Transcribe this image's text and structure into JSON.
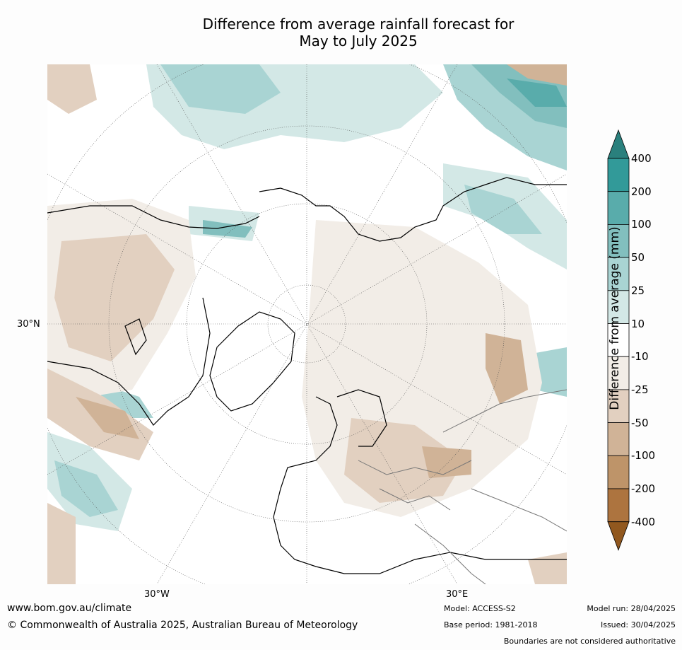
{
  "title_line1": "Difference from average rainfall forecast for",
  "title_line2": "May to July 2025",
  "lat_label": "30°N",
  "lon_labels": [
    "30°W",
    "30°E"
  ],
  "legend": {
    "label": "Difference from average (mm)",
    "ticks": [
      "400",
      "200",
      "100",
      "50",
      "25",
      "10",
      "-10",
      "-25",
      "-50",
      "-100",
      "-200",
      "-400"
    ],
    "colors": [
      "#2a807d",
      "#329a99",
      "#59acab",
      "#82bfbe",
      "#a9d4d3",
      "#d3e8e6",
      "#ffffff",
      "#f2ede7",
      "#e2d0c0",
      "#d0b397",
      "#be9469",
      "#ad743f",
      "#91581f"
    ]
  },
  "footer": {
    "website": "www.bom.gov.au/climate",
    "copyright": "© Commonwealth of Australia 2025, Australian Bureau of Meteorology",
    "model": "Model: ACCESS-S2",
    "base_period": "Base period: 1981-2018",
    "model_run": "Model run: 28/04/2025",
    "issued": "Issued: 30/04/2025",
    "disclaimer": "Boundaries are not considered authoritative"
  }
}
